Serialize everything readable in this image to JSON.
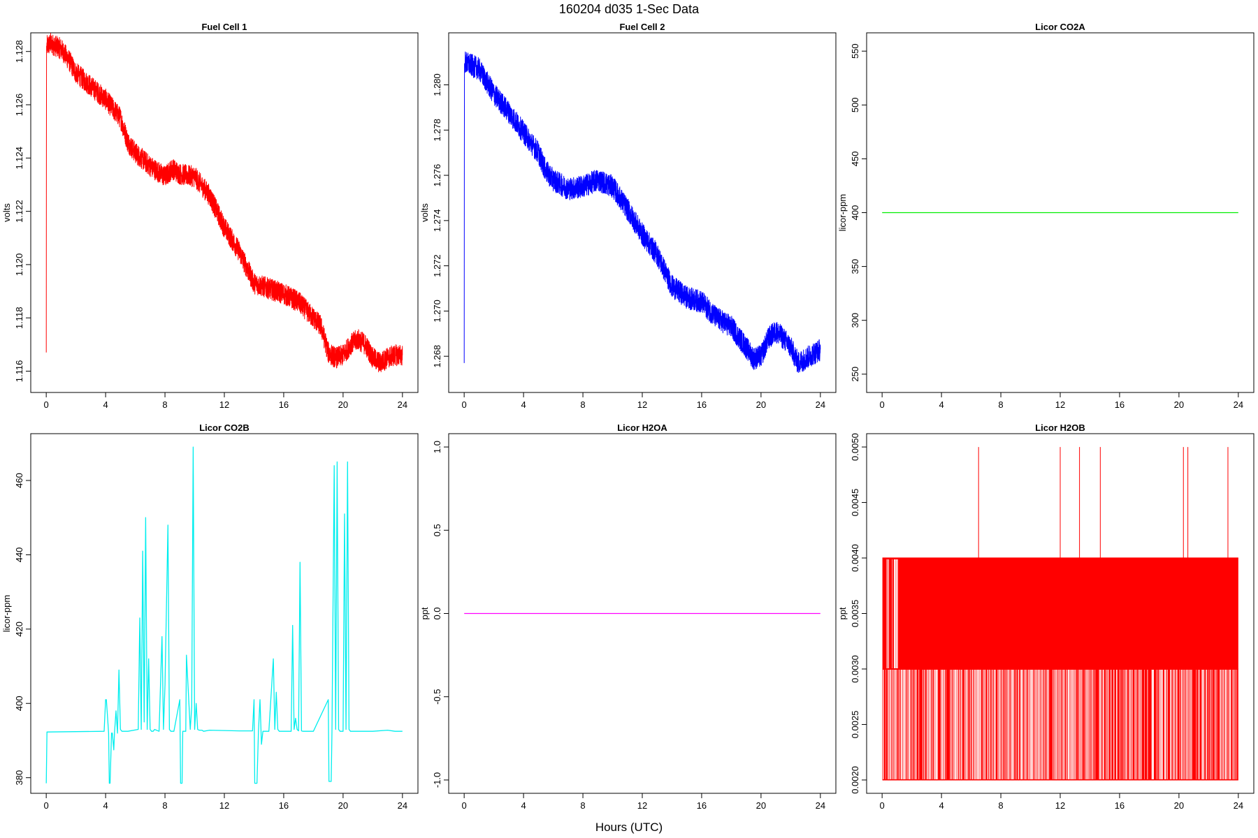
{
  "figure": {
    "title": "160204   d035   1-Sec Data",
    "xlabel": "Hours (UTC)"
  },
  "chart_data": [
    {
      "type": "line",
      "title": "Fuel Cell 1",
      "ylabel": "volts",
      "xlim": [
        0,
        24
      ],
      "ylim": [
        1.1152,
        1.1287
      ],
      "xticks": [
        "0",
        "4",
        "8",
        "12",
        "16",
        "20",
        "24"
      ],
      "xtick_values": [
        0,
        4,
        8,
        12,
        16,
        20,
        24
      ],
      "yticks": [
        "1.116",
        "1.118",
        "1.120",
        "1.122",
        "1.124",
        "1.126",
        "1.128"
      ],
      "ytick_values": [
        1.116,
        1.118,
        1.12,
        1.122,
        1.124,
        1.126,
        1.128
      ],
      "color": "#ff0000",
      "noise": 0.0004,
      "series": [
        {
          "x": [
            0,
            0.02,
            0.05,
            0.3,
            1,
            1.5,
            2,
            3,
            4,
            5,
            5.5,
            6,
            7,
            8,
            8.5,
            9,
            10,
            11,
            12,
            13,
            14,
            15,
            16,
            17,
            18,
            18.5,
            19,
            19.5,
            20,
            20.5,
            21,
            21.5,
            22,
            22.5,
            23,
            23.5,
            24
          ],
          "y": [
            1.1167,
            1.1282,
            1.1282,
            1.1283,
            1.1281,
            1.1277,
            1.1272,
            1.1267,
            1.1262,
            1.1255,
            1.1246,
            1.1242,
            1.1237,
            1.1233,
            1.1236,
            1.1234,
            1.1233,
            1.1226,
            1.1214,
            1.1205,
            1.1193,
            1.1191,
            1.1189,
            1.1186,
            1.118,
            1.1177,
            1.1167,
            1.1165,
            1.1166,
            1.117,
            1.1172,
            1.117,
            1.1165,
            1.1163,
            1.1165,
            1.1166,
            1.1166
          ]
        }
      ]
    },
    {
      "type": "line",
      "title": "Fuel Cell 2",
      "ylabel": "volts",
      "xlim": [
        0,
        24
      ],
      "ylim": [
        1.2664,
        1.2823
      ],
      "xticks": [
        "0",
        "4",
        "8",
        "12",
        "16",
        "20",
        "24"
      ],
      "xtick_values": [
        0,
        4,
        8,
        12,
        16,
        20,
        24
      ],
      "yticks": [
        "1.268",
        "1.270",
        "1.272",
        "1.274",
        "1.276",
        "1.278",
        "1.280"
      ],
      "ytick_values": [
        1.268,
        1.27,
        1.272,
        1.274,
        1.276,
        1.278,
        1.28
      ],
      "color": "#0000ff",
      "noise": 0.0005,
      "series": [
        {
          "x": [
            0,
            0.02,
            0.05,
            1,
            2,
            3,
            4,
            5,
            5.5,
            6,
            7,
            8,
            9,
            10,
            11,
            12,
            13,
            14,
            15,
            16,
            17,
            18,
            19,
            19.5,
            20,
            20.5,
            21,
            21.5,
            22,
            22.5,
            23,
            23.5,
            24
          ],
          "y": [
            1.2677,
            1.2809,
            1.281,
            1.2807,
            1.2796,
            1.2788,
            1.2779,
            1.277,
            1.2762,
            1.2758,
            1.2754,
            1.2755,
            1.2758,
            1.2755,
            1.2745,
            1.2734,
            1.2725,
            1.2711,
            1.2706,
            1.2704,
            1.2697,
            1.2693,
            1.2684,
            1.2679,
            1.268,
            1.2688,
            1.2691,
            1.2688,
            1.2684,
            1.2677,
            1.2679,
            1.2681,
            1.2683
          ]
        }
      ]
    },
    {
      "type": "line",
      "title": "Licor CO2A",
      "ylabel": "licor-ppm",
      "xlim": [
        0,
        24
      ],
      "ylim": [
        233,
        567
      ],
      "xticks": [
        "0",
        "4",
        "8",
        "12",
        "16",
        "20",
        "24"
      ],
      "xtick_values": [
        0,
        4,
        8,
        12,
        16,
        20,
        24
      ],
      "yticks": [
        "250",
        "300",
        "350",
        "400",
        "450",
        "500",
        "550"
      ],
      "ytick_values": [
        250,
        300,
        350,
        400,
        450,
        500,
        550
      ],
      "color": "#00ee00",
      "series": [
        {
          "x": [
            0,
            24
          ],
          "y": [
            400,
            400
          ]
        }
      ]
    },
    {
      "type": "line",
      "title": "Licor CO2B",
      "ylabel": "licor-ppm",
      "xlim": [
        0,
        24
      ],
      "ylim": [
        375.8,
        472.6
      ],
      "xticks": [
        "0",
        "4",
        "8",
        "12",
        "16",
        "20",
        "24"
      ],
      "xtick_values": [
        0,
        4,
        8,
        12,
        16,
        20,
        24
      ],
      "yticks": [
        "380",
        "400",
        "420",
        "440",
        "460"
      ],
      "ytick_values": [
        380,
        400,
        420,
        440,
        460
      ],
      "color": "#00eeee",
      "series": [
        {
          "x": [
            0,
            0.05,
            0.1,
            3.9,
            4.0,
            4.05,
            4.2,
            4.25,
            4.3,
            4.4,
            4.45,
            4.55,
            4.6,
            4.7,
            4.8,
            4.9,
            5.0,
            5.1,
            5.5,
            6.2,
            6.3,
            6.4,
            6.5,
            6.6,
            6.7,
            6.8,
            6.9,
            7.0,
            7.1,
            7.2,
            7.3,
            7.6,
            7.8,
            7.9,
            8.0,
            8.2,
            8.3,
            8.4,
            8.5,
            8.6,
            9.0,
            9.05,
            9.15,
            9.2,
            9.4,
            9.45,
            9.7,
            9.8,
            9.9,
            10.0,
            10.1,
            10.2,
            10.3,
            10.4,
            10.5,
            10.6,
            11,
            12,
            13,
            13.9,
            14.0,
            14.05,
            14.2,
            14.3,
            14.4,
            14.5,
            14.6,
            14.8,
            15,
            15.3,
            15.4,
            15.5,
            15.6,
            15.7,
            16.5,
            16.6,
            16.7,
            16.8,
            16.9,
            17.0,
            17.1,
            17.2,
            17.3,
            17.4,
            18,
            19.0,
            19.05,
            19.2,
            19.25,
            19.4,
            19.5,
            19.6,
            19.7,
            19.8,
            19.9,
            20.0,
            20.1,
            20.2,
            20.3,
            20.4,
            20.5,
            20.6,
            20.7,
            20.8,
            20.9,
            21.0,
            22,
            23,
            23.5,
            24
          ],
          "y": [
            378.5,
            392.3,
            392.3,
            392.5,
            401,
            401,
            392,
            378.5,
            378.5,
            392,
            392,
            387.5,
            392,
            398,
            392,
            409,
            393,
            392.5,
            392.5,
            393,
            423,
            393,
            441,
            395,
            450,
            393,
            412,
            393,
            392.5,
            392.5,
            393,
            392.5,
            418,
            393,
            405,
            448,
            393,
            392.5,
            392.5,
            392.5,
            401,
            378.5,
            378.5,
            392.5,
            392.5,
            413,
            393,
            399,
            469,
            393,
            400,
            393,
            392.8,
            392.8,
            392.8,
            392.5,
            392.8,
            392.7,
            392.6,
            392.6,
            401,
            378.5,
            378.5,
            392.5,
            401,
            389,
            392.5,
            392.5,
            392.5,
            412,
            393,
            403,
            393,
            392.5,
            392.5,
            421,
            393,
            396,
            393,
            392.6,
            438,
            392.6,
            392.5,
            392.5,
            392.5,
            401,
            379,
            379,
            392.5,
            464,
            393,
            465,
            393,
            392.5,
            392.5,
            392.5,
            451,
            393,
            465,
            393,
            392.5,
            392.5,
            392.5,
            392.5,
            392.5,
            392.5,
            392.5,
            392.8,
            392.5,
            392.5
          ]
        }
      ]
    },
    {
      "type": "line",
      "title": "Licor H2OA",
      "ylabel": "ppt",
      "xlim": [
        0,
        24
      ],
      "ylim": [
        -1.08,
        1.08
      ],
      "xticks": [
        "0",
        "4",
        "8",
        "12",
        "16",
        "20",
        "24"
      ],
      "xtick_values": [
        0,
        4,
        8,
        12,
        16,
        20,
        24
      ],
      "yticks": [
        "-1.0",
        "-0.5",
        "0.0",
        "0.5",
        "1.0"
      ],
      "ytick_values": [
        -1.0,
        -0.5,
        0.0,
        0.5,
        1.0
      ],
      "color": "#ff00ff",
      "series": [
        {
          "x": [
            0,
            24
          ],
          "y": [
            0,
            0
          ]
        }
      ]
    },
    {
      "type": "line",
      "title": "Licor H2OB",
      "ylabel": "ppt",
      "xlim": [
        0,
        24
      ],
      "ylim": [
        0.00188,
        0.00512
      ],
      "xticks": [
        "0",
        "4",
        "8",
        "12",
        "16",
        "20",
        "24"
      ],
      "xtick_values": [
        0,
        4,
        8,
        12,
        16,
        20,
        24
      ],
      "yticks": [
        "0.0020",
        "0.0025",
        "0.0030",
        "0.0035",
        "0.0040",
        "0.0045",
        "0.0050"
      ],
      "ytick_values": [
        0.002,
        0.0025,
        0.003,
        0.0035,
        0.004,
        0.0045,
        0.005
      ],
      "color": "#ff0000",
      "band": [
        0.002,
        0.004
      ],
      "levels": [
        0.002,
        0.003,
        0.004
      ],
      "spikes_x": [
        6.5,
        12.0,
        13.3,
        14.7,
        20.3,
        20.6,
        23.3
      ],
      "spike_value": 0.005
    }
  ]
}
